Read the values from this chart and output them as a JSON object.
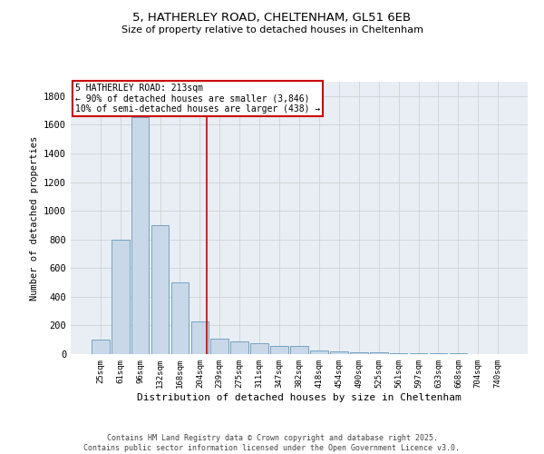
{
  "title1": "5, HATHERLEY ROAD, CHELTENHAM, GL51 6EB",
  "title2": "Size of property relative to detached houses in Cheltenham",
  "xlabel": "Distribution of detached houses by size in Cheltenham",
  "ylabel": "Number of detached properties",
  "categories": [
    "25sqm",
    "61sqm",
    "96sqm",
    "132sqm",
    "168sqm",
    "204sqm",
    "239sqm",
    "275sqm",
    "311sqm",
    "347sqm",
    "382sqm",
    "418sqm",
    "454sqm",
    "490sqm",
    "525sqm",
    "561sqm",
    "597sqm",
    "633sqm",
    "668sqm",
    "704sqm",
    "740sqm"
  ],
  "values": [
    100,
    800,
    1650,
    900,
    500,
    225,
    110,
    90,
    75,
    60,
    55,
    25,
    20,
    15,
    10,
    8,
    6,
    5,
    4,
    3,
    2
  ],
  "bar_color": "#c8d8e8",
  "bar_edge_color": "#6699bb",
  "marker_label": "5 HATHERLEY ROAD: 213sqm",
  "annotation_line1": "← 90% of detached houses are smaller (3,846)",
  "annotation_line2": "10% of semi-detached houses are larger (438) →",
  "annotation_box_color": "#cc0000",
  "vline_color": "#cc0000",
  "vline_x": 5.35,
  "ylim": [
    0,
    1900
  ],
  "yticks": [
    0,
    200,
    400,
    600,
    800,
    1000,
    1200,
    1400,
    1600,
    1800
  ],
  "grid_color": "#cccccc",
  "background_color": "#e8eef4",
  "footer1": "Contains HM Land Registry data © Crown copyright and database right 2025.",
  "footer2": "Contains public sector information licensed under the Open Government Licence v3.0."
}
